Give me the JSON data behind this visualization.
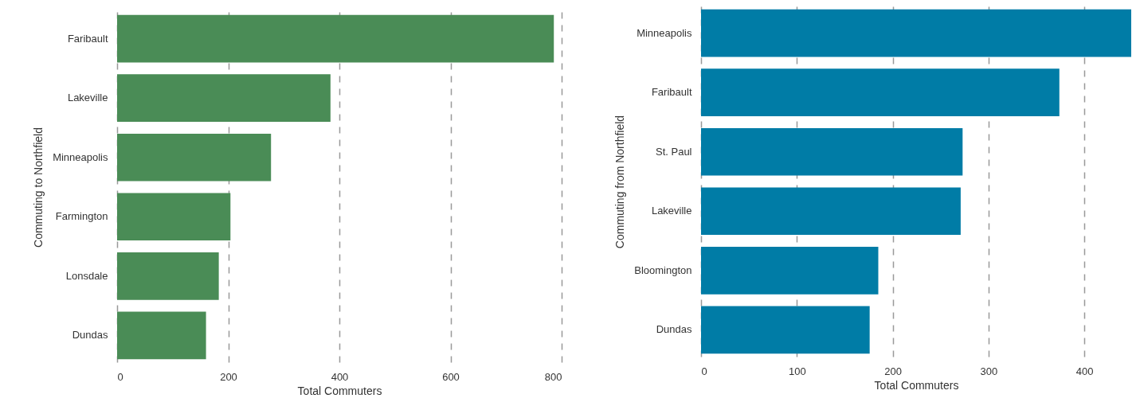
{
  "chart_data": [
    {
      "type": "bar",
      "orientation": "horizontal",
      "xlabel": "Total Commuters",
      "ylabel": "Commuting to Northfield",
      "categories": [
        "Faribault",
        "Lakeville",
        "Minneapolis",
        "Farmington",
        "Lonsdale",
        "Dundas"
      ],
      "values": [
        786,
        384,
        277,
        204,
        183,
        160
      ],
      "color": "#4a8c56",
      "xlim": [
        0,
        800
      ],
      "xticks": [
        0,
        200,
        400,
        600,
        800
      ],
      "grid": "x"
    },
    {
      "type": "bar",
      "orientation": "horizontal",
      "xlabel": "Total Commuters",
      "ylabel": "Commuting from Northfield",
      "categories": [
        "Minneapolis",
        "Faribault",
        "St. Paul",
        "Lakeville",
        "Bloomington",
        "Dundas"
      ],
      "values": [
        449,
        374,
        273,
        271,
        185,
        176
      ],
      "color": "#007ca6",
      "xlim": [
        0,
        449
      ],
      "xticks": [
        0,
        100,
        200,
        300,
        400
      ],
      "grid": "x"
    }
  ]
}
